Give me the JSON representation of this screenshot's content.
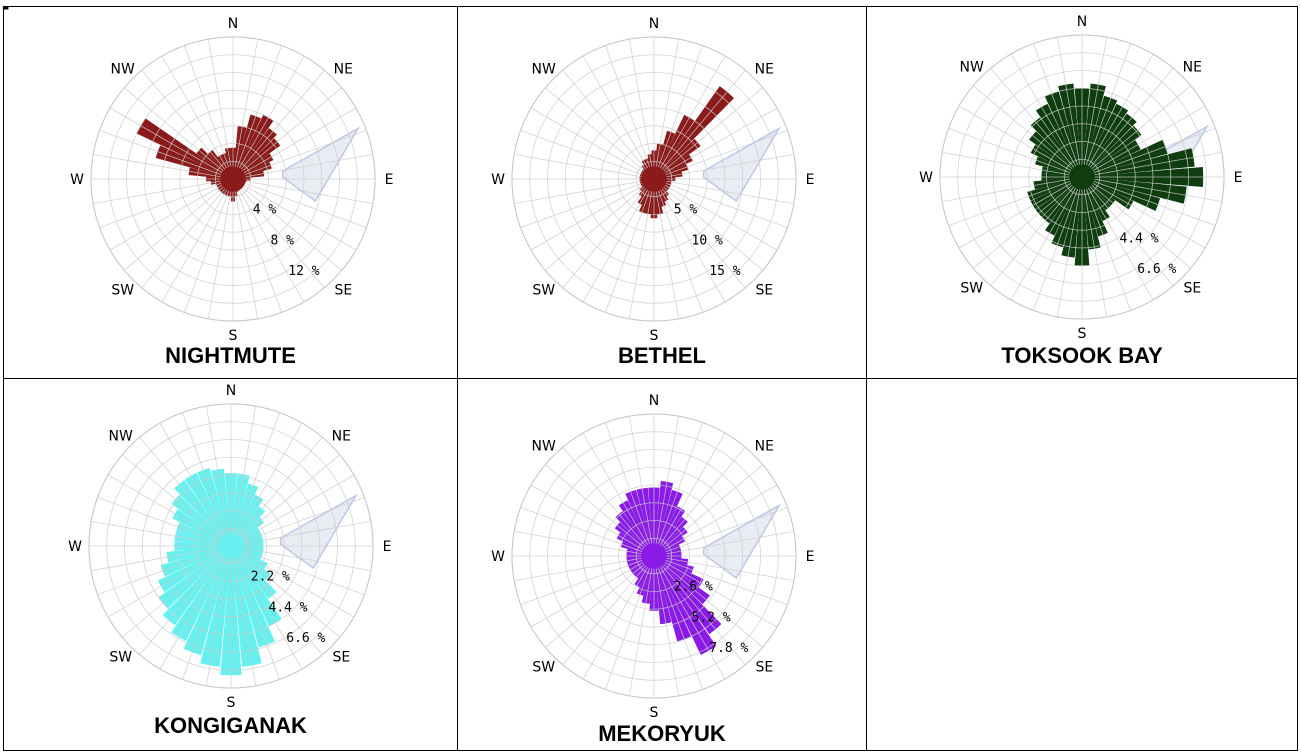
{
  "page": {
    "header_fragment": "-"
  },
  "compass": {
    "n": "N",
    "ne": "NE",
    "e": "E",
    "se": "SE",
    "s": "S",
    "sw": "SW",
    "w": "W",
    "nw": "NW"
  },
  "chart_data": [
    {
      "type": "wind-rose",
      "title": "NIGHTMUTE",
      "color": "#8b1a1a",
      "ring_labels": [
        "4 %",
        "8 %",
        "12 %"
      ],
      "ring_values": [
        4,
        8,
        12
      ],
      "rmax": 16,
      "directions_deg": [
        0,
        10,
        20,
        30,
        40,
        50,
        60,
        70,
        80,
        90,
        100,
        110,
        120,
        130,
        140,
        150,
        160,
        170,
        180,
        190,
        200,
        210,
        220,
        230,
        240,
        250,
        260,
        270,
        280,
        290,
        300,
        310,
        320,
        330,
        340,
        350
      ],
      "values": [
        3.5,
        6,
        7.5,
        8,
        7,
        6.5,
        5,
        4.5,
        3.5,
        2,
        1.5,
        1,
        1,
        1,
        1,
        1,
        1.5,
        2,
        2.5,
        2,
        2,
        2,
        2,
        2,
        2,
        2,
        2.5,
        3,
        5,
        9,
        12,
        5,
        4,
        3,
        3,
        3.5
      ]
    },
    {
      "type": "wind-rose",
      "title": "BETHEL",
      "color": "#8b1a1a",
      "ring_labels": [
        "5 %",
        "10 %",
        "15 %"
      ],
      "ring_values": [
        5,
        10,
        15
      ],
      "rmax": 20,
      "directions_deg": [
        0,
        10,
        20,
        30,
        40,
        50,
        60,
        70,
        80,
        90,
        100,
        110,
        120,
        130,
        140,
        150,
        160,
        170,
        180,
        190,
        200,
        210,
        220,
        230,
        240,
        250,
        260,
        270,
        280,
        290,
        300,
        310,
        320,
        330,
        340,
        350
      ],
      "values": [
        4,
        5,
        7,
        10,
        16,
        8,
        6,
        5,
        4,
        3,
        2.5,
        2.5,
        2.5,
        2.5,
        3,
        3.5,
        4,
        5,
        5.5,
        5,
        5,
        4,
        3,
        2.5,
        2,
        2,
        2,
        2,
        2,
        2,
        2,
        2,
        2.5,
        3,
        3,
        3.5
      ]
    },
    {
      "type": "wind-rose",
      "title": "TOKSOOK BAY",
      "color": "#0f3d0f",
      "ring_labels": [
        "4.4 %",
        "6.6 %"
      ],
      "ring_values": [
        4.4,
        6.6
      ],
      "rmax": 8.8,
      "directions_deg": [
        0,
        10,
        20,
        30,
        40,
        50,
        60,
        70,
        80,
        90,
        100,
        110,
        120,
        130,
        140,
        150,
        160,
        170,
        180,
        190,
        200,
        210,
        220,
        230,
        240,
        250,
        260,
        270,
        280,
        290,
        300,
        310,
        320,
        330,
        340,
        350
      ],
      "values": [
        5.5,
        5.8,
        5.2,
        5,
        4.8,
        4.5,
        4,
        5.5,
        7,
        7.5,
        6.5,
        5,
        3.5,
        2.5,
        2.5,
        3,
        3.8,
        4.5,
        5.5,
        5,
        4.5,
        4,
        3.5,
        3.5,
        3.5,
        3.5,
        3,
        2.5,
        2.5,
        3,
        3.5,
        4,
        4.5,
        5,
        5.5,
        5.8
      ]
    },
    {
      "type": "wind-rose",
      "title": "KONGIGANAK",
      "color": "#66f0f0",
      "ring_labels": [
        "2.2 %",
        "4.4 %",
        "6.6 %"
      ],
      "ring_values": [
        2.2,
        4.4,
        6.6
      ],
      "rmax": 8.8,
      "directions_deg": [
        0,
        10,
        20,
        30,
        40,
        50,
        60,
        70,
        80,
        90,
        100,
        110,
        120,
        130,
        140,
        150,
        160,
        170,
        180,
        190,
        200,
        210,
        220,
        230,
        240,
        250,
        260,
        270,
        280,
        290,
        300,
        310,
        320,
        330,
        340,
        350
      ],
      "values": [
        4.5,
        4.5,
        4,
        3.5,
        3,
        2.5,
        2,
        2,
        2,
        2,
        2,
        2,
        2.5,
        3,
        4,
        5.5,
        6.5,
        7.5,
        8,
        7.5,
        7,
        6.5,
        6,
        5.5,
        5,
        4.5,
        4,
        3.5,
        3.5,
        3.5,
        4,
        4.5,
        5,
        5,
        5,
        4.8
      ]
    },
    {
      "type": "wind-rose",
      "title": "MEKORYUK",
      "color": "#8a1ae6",
      "ring_labels": [
        "2.6 %",
        "5.2 %",
        "7.8 %"
      ],
      "ring_values": [
        2.6,
        5.2,
        7.8
      ],
      "rmax": 10.4,
      "directions_deg": [
        0,
        10,
        20,
        30,
        40,
        50,
        60,
        70,
        80,
        90,
        100,
        110,
        120,
        130,
        140,
        150,
        160,
        170,
        180,
        190,
        200,
        210,
        220,
        230,
        240,
        250,
        260,
        270,
        280,
        290,
        300,
        310,
        320,
        330,
        340,
        350
      ],
      "values": [
        5,
        5.5,
        5,
        4,
        3.5,
        3,
        2.5,
        2,
        2,
        2,
        2.5,
        3,
        4,
        5,
        7,
        8,
        6.5,
        5,
        4,
        3.5,
        3,
        2.5,
        2,
        2,
        2,
        2,
        2,
        2,
        2,
        2.5,
        3,
        3.5,
        4,
        4.5,
        5,
        5
      ]
    }
  ]
}
